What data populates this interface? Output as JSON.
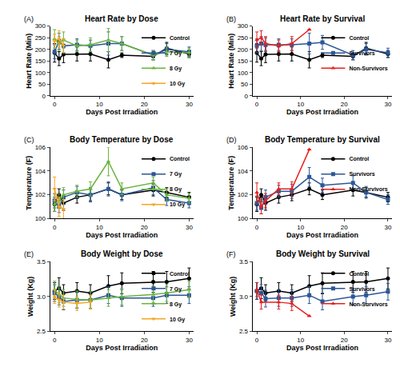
{
  "chart_data": [
    {
      "type": "line",
      "title": "Heart Rate by Dose",
      "annotations": [
        {
          "text": "(A)"
        }
      ],
      "x_label": "Days Post Irradiation",
      "y_label": "Heart Rate (Min)",
      "xlim": [
        -1,
        31
      ],
      "xticks": [
        0,
        10,
        20,
        30
      ],
      "ylim": [
        0,
        300
      ],
      "yticks": [
        0,
        50,
        100,
        150,
        200,
        250,
        300
      ],
      "legend": "upper right",
      "series": [
        {
          "name": "Control",
          "color": "#000000",
          "marker": "circle",
          "x": [
            0,
            1,
            2,
            5,
            8,
            12,
            15,
            22,
            25,
            30
          ],
          "values": [
            185,
            160,
            178,
            180,
            180,
            155,
            175,
            170,
            205,
            180
          ],
          "errors": [
            40,
            30,
            35,
            30,
            30,
            35,
            10,
            15,
            25,
            15
          ]
        },
        {
          "name": "7 Gy",
          "color": "#2b5797",
          "marker": "square",
          "x": [
            0,
            1,
            2,
            5,
            8,
            12,
            15,
            22,
            25,
            30
          ],
          "values": [
            190,
            235,
            215,
            220,
            215,
            225,
            225,
            175,
            200,
            190
          ],
          "errors": [
            30,
            35,
            30,
            25,
            25,
            50,
            30,
            20,
            25,
            20
          ]
        },
        {
          "name": "8 Gy",
          "color": "#6ab43e",
          "marker": "triangle-up",
          "x": [
            0,
            1,
            2,
            5,
            8,
            12,
            15,
            22,
            25,
            30
          ],
          "values": [
            245,
            225,
            240,
            215,
            220,
            240,
            225,
            175,
            190,
            185
          ],
          "errors": [
            40,
            30,
            35,
            25,
            30,
            50,
            30,
            20,
            20,
            20
          ]
        },
        {
          "name": "10 Gy",
          "color": "#f5a623",
          "marker": "triangle-down",
          "x": [
            0,
            1,
            2
          ],
          "values": [
            235,
            245,
            215
          ],
          "errors": [
            30,
            35,
            30
          ]
        }
      ]
    },
    {
      "type": "line",
      "title": "Heart Rate by Survival",
      "annotations": [
        {
          "text": "(B)"
        }
      ],
      "x_label": "Days Post Irradiation",
      "y_label": "Heart Rate (Min)",
      "xlim": [
        -1,
        31
      ],
      "xticks": [
        0,
        10,
        20,
        30
      ],
      "ylim": [
        0,
        300
      ],
      "yticks": [
        0,
        50,
        100,
        150,
        200,
        250,
        300
      ],
      "legend": "upper right",
      "series": [
        {
          "name": "Control",
          "color": "#000000",
          "marker": "circle",
          "x": [
            0,
            1,
            2,
            5,
            8,
            12,
            15,
            22,
            25,
            30
          ],
          "values": [
            185,
            160,
            178,
            180,
            180,
            155,
            175,
            170,
            205,
            180
          ],
          "errors": [
            40,
            30,
            35,
            30,
            30,
            35,
            10,
            15,
            25,
            15
          ]
        },
        {
          "name": "Survivors",
          "color": "#2b5797",
          "marker": "square",
          "x": [
            0,
            1,
            2,
            5,
            8,
            12,
            15,
            22,
            25,
            30
          ],
          "values": [
            215,
            225,
            220,
            220,
            220,
            225,
            230,
            175,
            200,
            185
          ],
          "errors": [
            30,
            30,
            30,
            25,
            25,
            45,
            30,
            20,
            25,
            20
          ]
        },
        {
          "name": "Non-Survivors",
          "color": "#e8211f",
          "marker": "triangle-up",
          "x": [
            0,
            1,
            2,
            5,
            8,
            12
          ],
          "values": [
            240,
            250,
            225,
            215,
            225,
            285
          ],
          "errors": [
            35,
            30,
            30,
            25,
            30,
            0
          ]
        }
      ]
    },
    {
      "type": "line",
      "title": "Body Temperature by Dose",
      "annotations": [
        {
          "text": "(C)"
        }
      ],
      "x_label": "Days Post Irradiation",
      "y_label": "Temperature (F)",
      "xlim": [
        -1,
        31
      ],
      "xticks": [
        0,
        10,
        20,
        30
      ],
      "ylim": [
        100,
        106
      ],
      "yticks": [
        100,
        102,
        104,
        106
      ],
      "legend": "upper right",
      "series": [
        {
          "name": "Control",
          "color": "#000000",
          "marker": "circle",
          "x": [
            0,
            1,
            2,
            5,
            8,
            12,
            15,
            22,
            25,
            30
          ],
          "values": [
            101.2,
            102.0,
            101.3,
            101.8,
            102.0,
            102.5,
            102.0,
            102.4,
            102.2,
            101.8
          ],
          "errors": [
            0.6,
            0.5,
            0.6,
            0.5,
            0.5,
            0.5,
            0.4,
            0.5,
            0.4,
            0.4
          ]
        },
        {
          "name": "7 Gy",
          "color": "#2b5797",
          "marker": "square",
          "x": [
            0,
            1,
            2,
            5,
            8,
            12,
            15,
            22,
            25,
            30
          ],
          "values": [
            101.5,
            101.0,
            101.8,
            102.2,
            102.0,
            102.5,
            102.0,
            102.6,
            101.6,
            101.3
          ],
          "errors": [
            0.6,
            0.5,
            0.6,
            0.5,
            0.6,
            0.6,
            0.5,
            0.6,
            0.5,
            0.4
          ]
        },
        {
          "name": "8 Gy",
          "color": "#6ab43e",
          "marker": "triangle-up",
          "x": [
            0,
            1,
            2,
            5,
            8,
            12,
            15,
            22,
            25,
            30
          ],
          "values": [
            101.2,
            101.5,
            102.0,
            102.3,
            102.5,
            104.8,
            102.5,
            103.0,
            102.0,
            101.7
          ],
          "errors": [
            0.6,
            0.6,
            0.6,
            0.5,
            0.6,
            1.2,
            0.5,
            0.5,
            0.5,
            0.4
          ]
        },
        {
          "name": "10 Gy",
          "color": "#f5a623",
          "marker": "triangle-down",
          "x": [
            0,
            1,
            2
          ],
          "values": [
            102.5,
            101.0,
            100.8
          ],
          "errors": [
            1.0,
            0.8,
            0.8
          ]
        }
      ]
    },
    {
      "type": "line",
      "title": "Body Temperature by Survival",
      "annotations": [
        {
          "text": "(D)"
        }
      ],
      "x_label": "Days Post Irradiation",
      "y_label": "Temperature (F)",
      "xlim": [
        -1,
        31
      ],
      "xticks": [
        0,
        10,
        20,
        30
      ],
      "ylim": [
        100,
        106
      ],
      "yticks": [
        100,
        102,
        104,
        106
      ],
      "legend": "upper right",
      "series": [
        {
          "name": "Control",
          "color": "#000000",
          "marker": "circle",
          "x": [
            0,
            1,
            2,
            5,
            8,
            12,
            15,
            22,
            25,
            30
          ],
          "values": [
            101.2,
            102.0,
            101.3,
            101.8,
            102.0,
            102.5,
            102.0,
            102.4,
            102.2,
            101.8
          ],
          "errors": [
            0.6,
            0.5,
            0.6,
            0.5,
            0.5,
            0.5,
            0.4,
            0.5,
            0.4,
            0.4
          ]
        },
        {
          "name": "Survivors",
          "color": "#2b5797",
          "marker": "square",
          "x": [
            0,
            1,
            2,
            5,
            8,
            12,
            15,
            22,
            25,
            30
          ],
          "values": [
            101.3,
            100.9,
            101.8,
            102.3,
            102.3,
            103.5,
            102.8,
            103.0,
            102.2,
            101.6
          ],
          "errors": [
            0.6,
            0.5,
            0.6,
            0.5,
            0.6,
            0.8,
            0.6,
            0.6,
            0.5,
            0.4
          ]
        },
        {
          "name": "Non-Survivors",
          "color": "#e8211f",
          "marker": "triangle-up",
          "x": [
            0,
            1,
            2,
            5,
            8,
            12
          ],
          "values": [
            102.2,
            101.0,
            101.5,
            102.5,
            102.5,
            105.8
          ],
          "errors": [
            0.8,
            0.6,
            0.6,
            0.5,
            0.6,
            0
          ]
        }
      ]
    },
    {
      "type": "line",
      "title": "Body Weight by Dose",
      "annotations": [
        {
          "text": "(E)"
        }
      ],
      "x_label": "Days Post Irradiation",
      "y_label": "Weight (Kg)",
      "xlim": [
        -1,
        31
      ],
      "xticks": [
        0,
        10,
        20,
        30
      ],
      "ylim": [
        2.5,
        3.5
      ],
      "yticks": [
        2.5,
        {
          "value": 3,
          "label": "3.0"
        },
        3.5
      ],
      "legend": "upper right",
      "series": [
        {
          "name": "Control",
          "color": "#000000",
          "marker": "circle",
          "x": [
            0,
            1,
            2,
            5,
            8,
            12,
            15,
            22,
            25,
            30
          ],
          "values": [
            3.08,
            3.12,
            3.05,
            3.08,
            3.05,
            3.15,
            3.19,
            3.21,
            3.21,
            3.26
          ],
          "errors": [
            0.12,
            0.15,
            0.12,
            0.12,
            0.12,
            0.15,
            0.15,
            0.15,
            0.15,
            0.15
          ]
        },
        {
          "name": "7 Gy",
          "color": "#2b5797",
          "marker": "square",
          "x": [
            0,
            1,
            2,
            5,
            8,
            12,
            15,
            22,
            25,
            30
          ],
          "values": [
            3.05,
            3.0,
            2.93,
            2.95,
            2.95,
            3.02,
            2.98,
            2.98,
            3.02,
            3.02
          ],
          "errors": [
            0.12,
            0.12,
            0.12,
            0.12,
            0.12,
            0.12,
            0.12,
            0.12,
            0.12,
            0.12
          ]
        },
        {
          "name": "8 Gy",
          "color": "#6ab43e",
          "marker": "triangle-up",
          "x": [
            0,
            1,
            2,
            5,
            8,
            12,
            15,
            22,
            25,
            30
          ],
          "values": [
            3.1,
            3.03,
            2.98,
            2.96,
            2.95,
            2.98,
            3.0,
            3.03,
            3.05,
            3.1
          ],
          "errors": [
            0.12,
            0.12,
            0.12,
            0.12,
            0.12,
            0.12,
            0.12,
            0.12,
            0.12,
            0.12
          ]
        },
        {
          "name": "10 Gy",
          "color": "#f5a623",
          "marker": "triangle-down",
          "x": [
            0,
            1,
            2,
            5,
            8
          ],
          "values": [
            3.0,
            2.95,
            2.92,
            2.9,
            2.92
          ],
          "errors": [
            0.1,
            0.1,
            0.1,
            0.1,
            0.1
          ]
        }
      ]
    },
    {
      "type": "line",
      "title": "Body Weight by Survival",
      "annotations": [
        {
          "text": "(F)"
        }
      ],
      "x_label": "Days Post Irradiation",
      "y_label": "Weight (Kg)",
      "xlim": [
        -1,
        31
      ],
      "xticks": [
        0,
        10,
        20,
        30
      ],
      "ylim": [
        2.5,
        3.5
      ],
      "yticks": [
        2.5,
        {
          "value": 3,
          "label": "3.0"
        },
        3.5
      ],
      "legend": "upper right",
      "series": [
        {
          "name": "Control",
          "color": "#000000",
          "marker": "circle",
          "x": [
            0,
            1,
            2,
            5,
            8,
            12,
            15,
            22,
            25,
            30
          ],
          "values": [
            3.08,
            3.12,
            3.05,
            3.08,
            3.05,
            3.15,
            3.19,
            3.21,
            3.21,
            3.26
          ],
          "errors": [
            0.12,
            0.15,
            0.12,
            0.12,
            0.12,
            0.15,
            0.15,
            0.15,
            0.15,
            0.15
          ]
        },
        {
          "name": "Survivors",
          "color": "#2b5797",
          "marker": "square",
          "x": [
            0,
            1,
            2,
            5,
            8,
            12,
            15,
            22,
            25,
            30
          ],
          "values": [
            3.08,
            3.05,
            2.97,
            2.98,
            2.98,
            3.02,
            2.93,
            3.0,
            3.02,
            3.07
          ],
          "errors": [
            0.12,
            0.12,
            0.12,
            0.12,
            0.12,
            0.12,
            0.12,
            0.12,
            0.12,
            0.12
          ]
        },
        {
          "name": "Non-Survivors",
          "color": "#e8211f",
          "marker": "triangle-up",
          "x": [
            0,
            1,
            5,
            8,
            12
          ],
          "values": [
            3.1,
            2.92,
            2.92,
            2.9,
            2.72
          ],
          "errors": [
            0.1,
            0.1,
            0.1,
            0.1,
            0
          ]
        }
      ]
    }
  ]
}
